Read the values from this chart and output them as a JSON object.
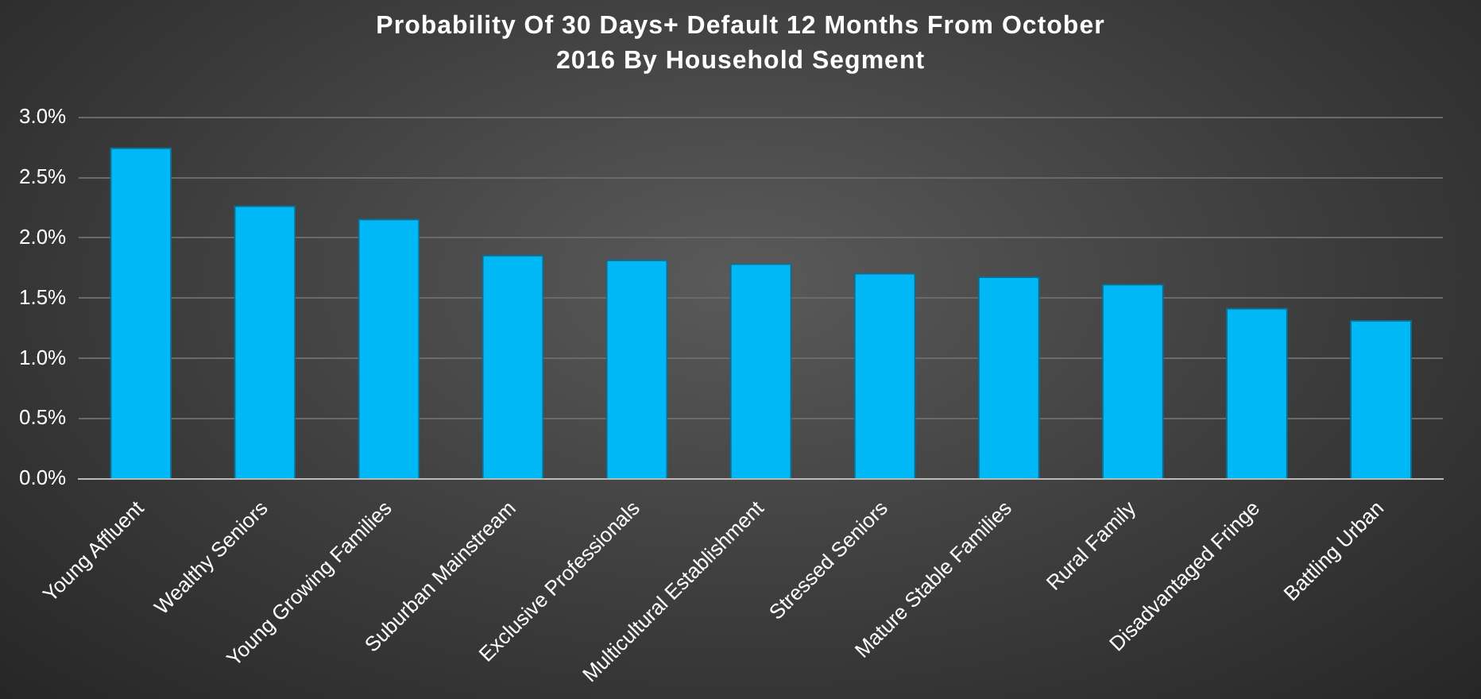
{
  "chart_data": {
    "type": "bar",
    "title": "Probability  Of 30 Days+ Default 12 Months From October 2016 By Household Segment",
    "categories": [
      "Young Affluent",
      "Wealthy Seniors",
      "Young Growing Families",
      "Suburban Mainstream",
      "Exclusive Professionals",
      "Multicultural Establishment",
      "Stressed Seniors",
      "Mature Stable Families",
      "Rural Family",
      "Disadvantaged Fringe",
      "Battling Urban"
    ],
    "values": [
      2.75,
      2.27,
      2.16,
      1.86,
      1.82,
      1.79,
      1.71,
      1.68,
      1.62,
      1.42,
      1.32
    ],
    "color": "#00b8f5",
    "ylim": [
      0,
      3
    ],
    "yticks": [
      {
        "value": 0,
        "label": "0.0%"
      },
      {
        "value": 0.5,
        "label": "0.5%"
      },
      {
        "value": 1,
        "label": "1.0%"
      },
      {
        "value": 1.5,
        "label": "1.5%"
      },
      {
        "value": 2,
        "label": "2.0%"
      },
      {
        "value": 2.5,
        "label": "2.5%"
      },
      {
        "value": 3,
        "label": "3.0%"
      }
    ],
    "grid": "y"
  }
}
